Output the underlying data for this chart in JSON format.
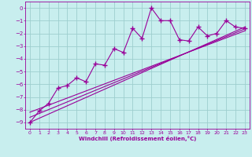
{
  "title": "",
  "xlabel": "Windchill (Refroidissement éolien,°C)",
  "bg_color": "#c8eeee",
  "grid_color": "#9ecece",
  "line_color": "#990099",
  "xlim": [
    -0.5,
    23.5
  ],
  "ylim": [
    -9.5,
    0.5
  ],
  "yticks": [
    0,
    -1,
    -2,
    -3,
    -4,
    -5,
    -6,
    -7,
    -8,
    -9
  ],
  "xticks": [
    0,
    1,
    2,
    3,
    4,
    5,
    6,
    7,
    8,
    9,
    10,
    11,
    12,
    13,
    14,
    15,
    16,
    17,
    18,
    19,
    20,
    21,
    22,
    23
  ],
  "scatter_x": [
    0,
    1,
    2,
    3,
    4,
    5,
    6,
    7,
    8,
    9,
    10,
    11,
    12,
    13,
    14,
    15,
    16,
    17,
    18,
    19,
    20,
    21,
    22,
    23
  ],
  "scatter_y": [
    -9.0,
    -8.1,
    -7.5,
    -6.3,
    -6.1,
    -5.5,
    -5.8,
    -4.4,
    -4.5,
    -3.2,
    -3.5,
    -1.6,
    -2.4,
    0.0,
    -1.0,
    -1.0,
    -2.5,
    -2.6,
    -1.5,
    -2.2,
    -2.0,
    -1.0,
    -1.5,
    -1.6
  ],
  "line1_x": [
    0,
    23
  ],
  "line1_y": [
    -9.0,
    -1.5
  ],
  "line2_x": [
    0,
    23
  ],
  "line2_y": [
    -8.6,
    -1.65
  ],
  "line3_x": [
    0,
    23
  ],
  "line3_y": [
    -8.2,
    -1.8
  ]
}
